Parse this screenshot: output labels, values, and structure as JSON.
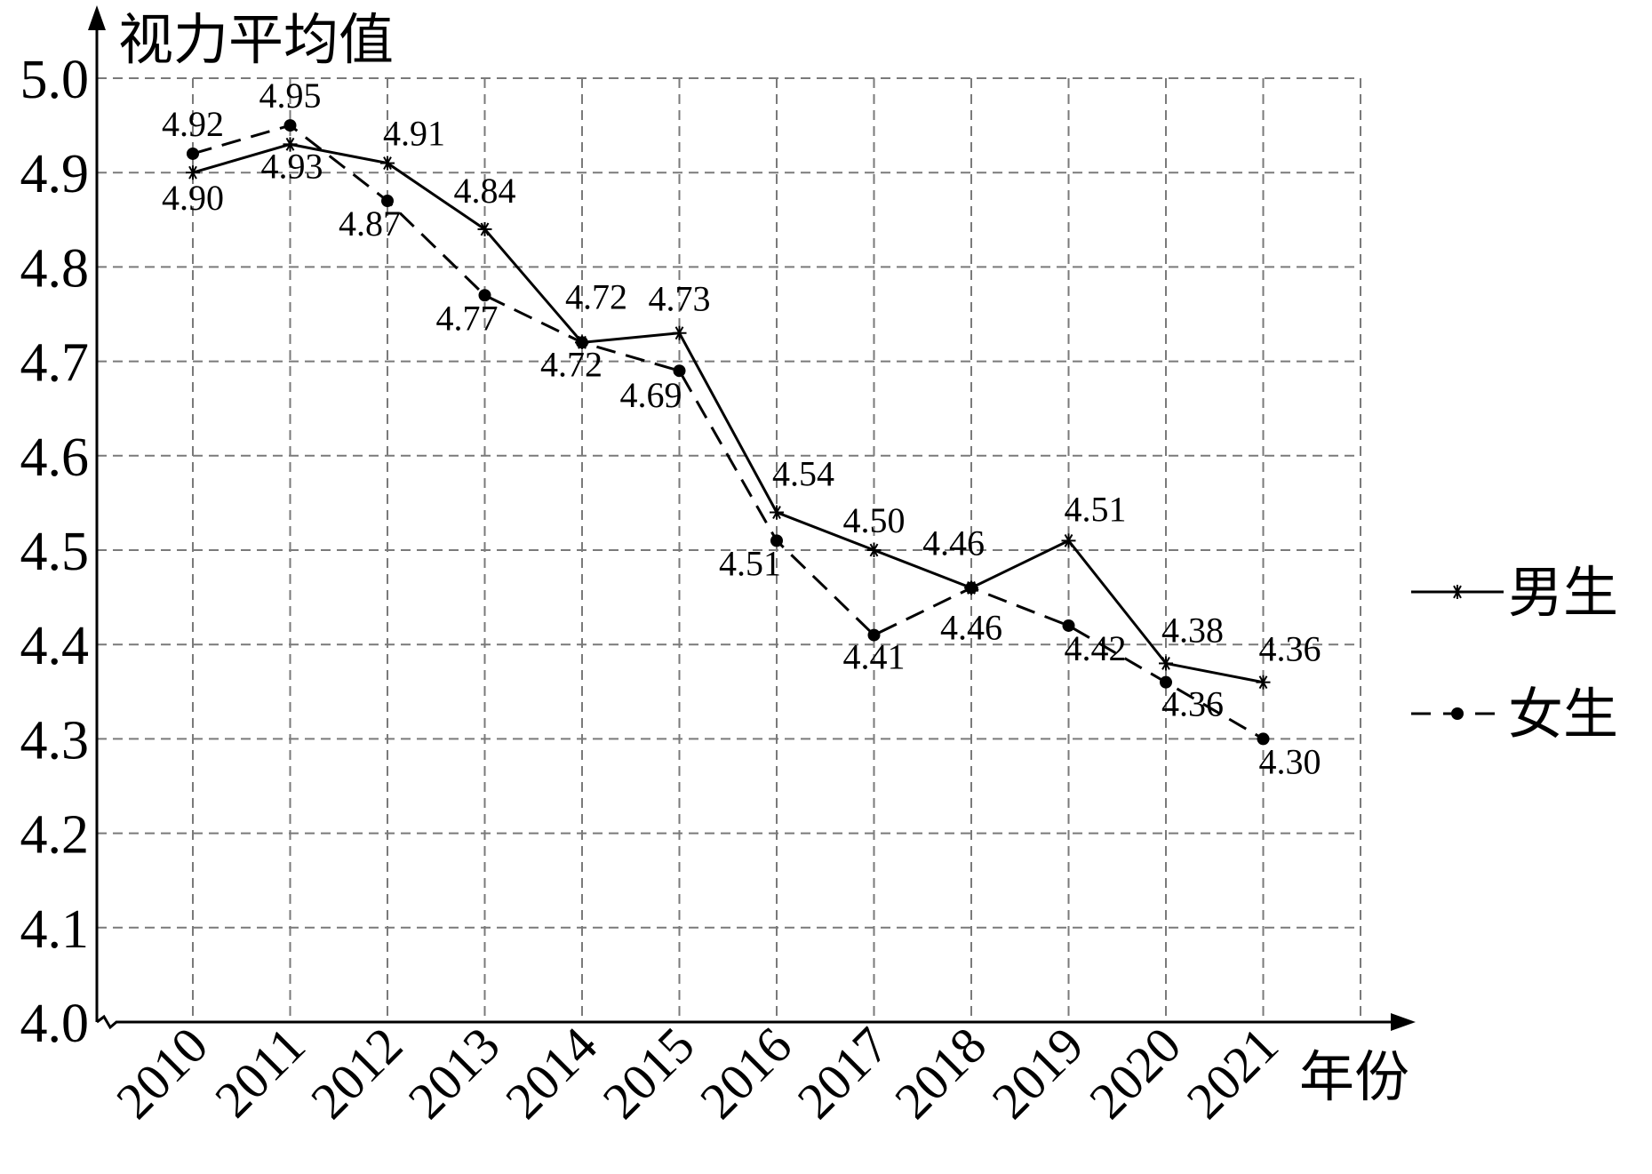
{
  "chart_data": {
    "type": "line",
    "ylabel": "视力平均值",
    "xlabel": "年份",
    "categories": [
      "2010",
      "2011",
      "2012",
      "2013",
      "2014",
      "2015",
      "2016",
      "2017",
      "2018",
      "2019",
      "2020",
      "2021"
    ],
    "ylim": [
      4.0,
      5.0
    ],
    "yticks": [
      "4.0",
      "4.1",
      "4.2",
      "4.3",
      "4.4",
      "4.5",
      "4.6",
      "4.7",
      "4.8",
      "4.9",
      "5.0"
    ],
    "grid": true,
    "legend_position": "right",
    "series": [
      {
        "name": "男生",
        "style": "solid",
        "marker": "star",
        "values": [
          4.9,
          4.93,
          4.91,
          4.84,
          4.72,
          4.73,
          4.54,
          4.5,
          4.46,
          4.51,
          4.38,
          4.36
        ],
        "labels": [
          "4.90",
          "4.93",
          "4.91",
          "4.84",
          "4.72",
          "4.73",
          "4.54",
          "4.50",
          "4.46",
          "4.51",
          "4.38",
          "4.36"
        ]
      },
      {
        "name": "女生",
        "style": "dashed",
        "marker": "dot",
        "values": [
          4.92,
          4.95,
          4.87,
          4.77,
          4.72,
          4.69,
          4.51,
          4.41,
          4.46,
          4.42,
          4.36,
          4.3
        ],
        "labels": [
          "4.92",
          "4.95",
          "4.87",
          "4.77",
          "4.72",
          "4.69",
          "4.51",
          "4.41",
          "4.46",
          "4.42",
          "4.36",
          "4.30"
        ]
      }
    ],
    "colors": {
      "line": "#000000",
      "grid": "#7a7a7a"
    }
  }
}
